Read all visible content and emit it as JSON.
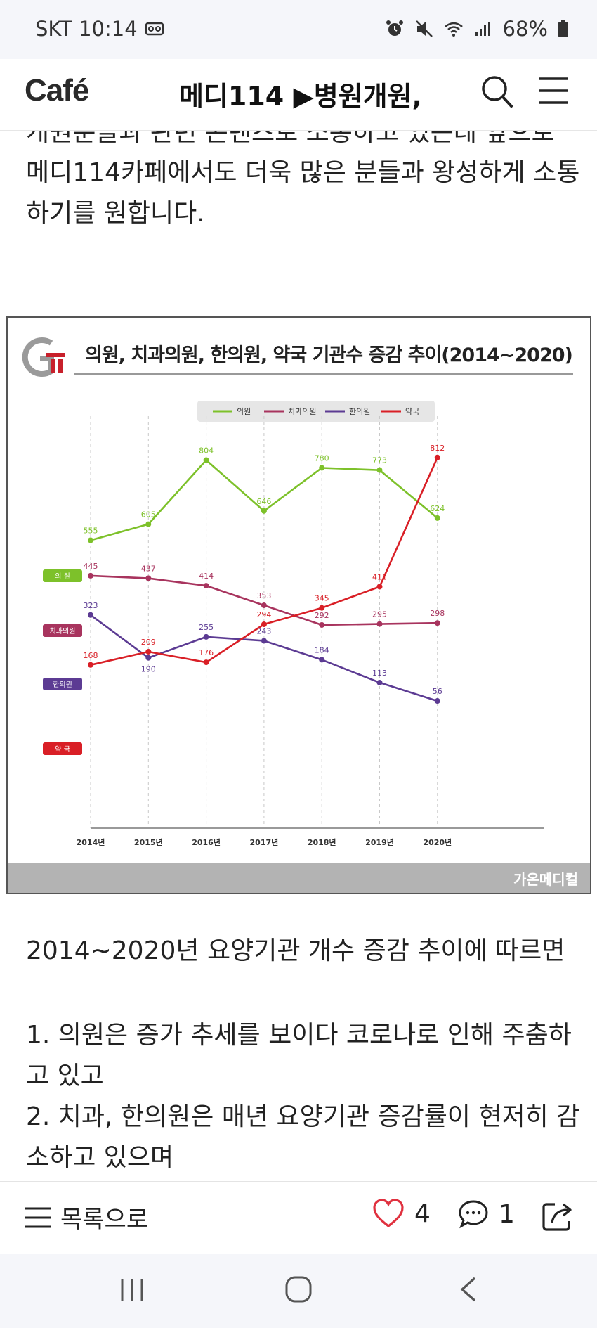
{
  "status_bar": {
    "carrier_time": "SKT 10:14",
    "battery": "68%",
    "icons": [
      "recorder-icon",
      "alarm-icon",
      "mute-icon",
      "wifi-icon",
      "signal-icon",
      "battery-icon"
    ]
  },
  "header": {
    "logo": "Café",
    "title": "메디114 ▶병원개원,"
  },
  "article": {
    "cut_line": "개원분들과 관련 콘텐츠로 소통하고 있는데 앞으로",
    "intro_lines": [
      "메디114카페에서도 더욱 많은 분들과 왕성하게 소통",
      "하기를 원합니다."
    ],
    "after_chart": "2014~2020년 요양기관 개수 증감 추이에 따르면",
    "point1_lines": [
      "1. 의원은 증가 추세를 보이다 코로나로 인해 주춤하",
      "고 있고"
    ],
    "point2_lines": [
      "2. 치과, 한의원은 매년 요양기관 증감률이 현저히 감",
      "소하고 있으며"
    ]
  },
  "chart_data": {
    "type": "line",
    "title": "의원, 치과의원, 한의원, 약국 기관수 증감 추이(2014~2020)",
    "categories": [
      "2014년",
      "2015년",
      "2016년",
      "2017년",
      "2018년",
      "2019년",
      "2020년"
    ],
    "legend_position": "top-center",
    "grid": "vertical-dashed",
    "source": "가온메디컬",
    "series": [
      {
        "name": "의원",
        "side_label": "의 원",
        "color": "#7dc12a",
        "values": [
          555,
          605,
          804,
          646,
          780,
          773,
          624
        ]
      },
      {
        "name": "치과의원",
        "side_label": "치과의원",
        "color": "#a8345e",
        "values": [
          445,
          437,
          414,
          353,
          292,
          295,
          298
        ]
      },
      {
        "name": "한의원",
        "side_label": "한의원",
        "color": "#5c3b93",
        "values": [
          323,
          190,
          255,
          243,
          184,
          113,
          56
        ]
      },
      {
        "name": "약국",
        "side_label": "약 국",
        "color": "#d91f26",
        "values": [
          168,
          209,
          176,
          294,
          345,
          411,
          812
        ]
      }
    ]
  },
  "bottom_bar": {
    "list_label": "목록으로",
    "likes": "4",
    "comments": "1"
  }
}
